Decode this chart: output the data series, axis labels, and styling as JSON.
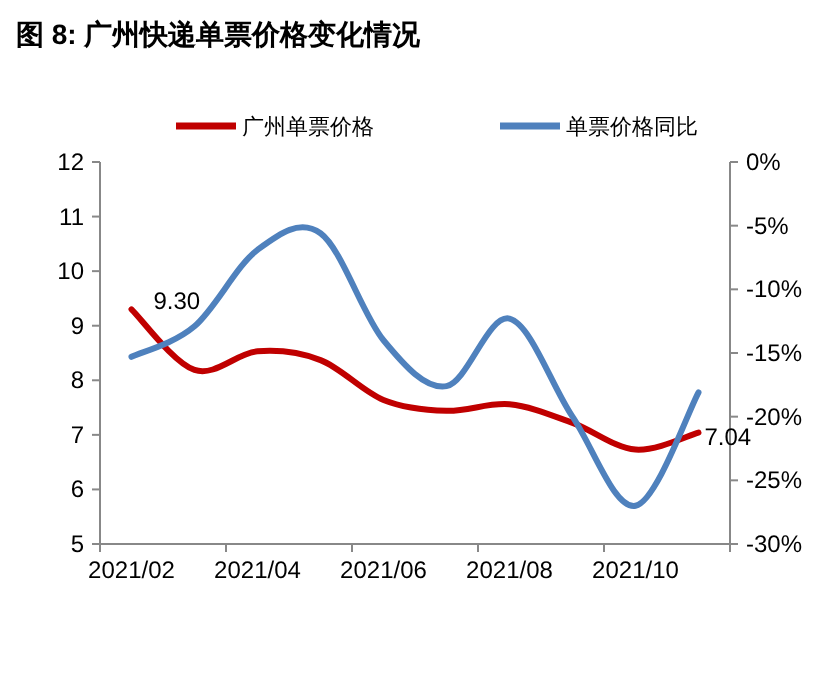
{
  "chart_data": {
    "type": "line",
    "title": "图 8:  广州快递单票价格变化情况",
    "categories": [
      "2021/02",
      null,
      "2021/04",
      null,
      "2021/06",
      null,
      "2021/08",
      null,
      "2021/10",
      null
    ],
    "series": [
      {
        "name": "广州单票价格",
        "color": "#c00000",
        "values": [
          9.3,
          8.19,
          8.53,
          8.37,
          7.64,
          7.44,
          7.56,
          7.22,
          6.73,
          7.04
        ],
        "value_labels": [
          "9.30",
          null,
          null,
          null,
          null,
          null,
          null,
          null,
          null,
          "7.04"
        ]
      },
      {
        "name": "单票价格同比",
        "color": "#4f81bd",
        "axis": "y2",
        "values": [
          -15.3,
          -12.9,
          -6.9,
          -5.6,
          -14.0,
          -17.6,
          -12.3,
          -20.0,
          -27.0,
          -18.1
        ]
      }
    ],
    "ylim": [
      5,
      12
    ],
    "yticks": [
      5,
      6,
      7,
      8,
      9,
      10,
      11,
      12
    ],
    "y2lim": [
      -30,
      0
    ],
    "y2ticks": [
      {
        "value": -30,
        "label": "-30%"
      },
      {
        "value": -25,
        "label": "-25%"
      },
      {
        "value": -20,
        "label": "-20%"
      },
      {
        "value": -15,
        "label": "-15%"
      },
      {
        "value": -10,
        "label": "-10%"
      },
      {
        "value": -5,
        "label": "-5%"
      },
      {
        "value": 0,
        "label": "0%"
      }
    ],
    "legend": "top",
    "grid": false
  }
}
